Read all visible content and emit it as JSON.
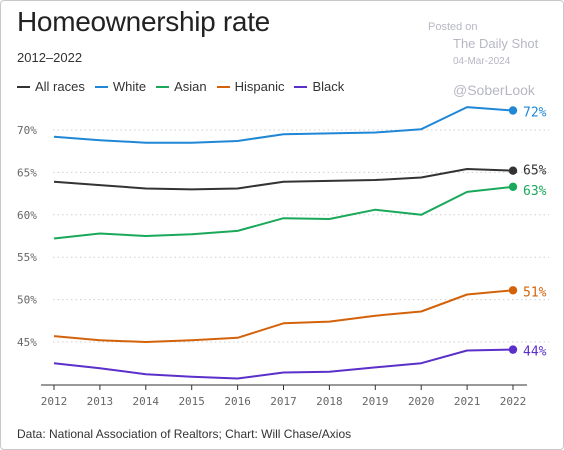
{
  "title": "Homeownership rate",
  "subtitle": "2012–2022",
  "source": "Data: National Association of Realtors; Chart: Will Chase/Axios",
  "watermark": {
    "line1": "Posted on",
    "line2": "The Daily Shot",
    "line3": "04-Mar-2024",
    "line4": "@SoberLook"
  },
  "chart_data": {
    "type": "line",
    "x": [
      2012,
      2013,
      2014,
      2015,
      2016,
      2017,
      2018,
      2019,
      2020,
      2021,
      2022
    ],
    "x_tick_labels": [
      "2012",
      "2013",
      "2014",
      "2015",
      "2016",
      "2017",
      "2018",
      "2019",
      "2020",
      "2021",
      "2022"
    ],
    "ylim": [
      40,
      74
    ],
    "y_ticks": [
      45,
      50,
      55,
      60,
      65,
      70
    ],
    "y_tick_labels": [
      "45%",
      "50%",
      "55%",
      "60%",
      "65%",
      "70%"
    ],
    "grid": "horizontal dotted",
    "legend_position": "top-left",
    "series": [
      {
        "name": "All races",
        "color": "#333333",
        "end_label": "65%",
        "values": [
          63.9,
          63.5,
          63.1,
          63.0,
          63.1,
          63.9,
          64.0,
          64.1,
          64.4,
          65.4,
          65.2
        ]
      },
      {
        "name": "White",
        "color": "#1f87d6",
        "end_label": "72%",
        "values": [
          69.2,
          68.8,
          68.5,
          68.5,
          68.7,
          69.5,
          69.6,
          69.7,
          70.1,
          72.7,
          72.3
        ]
      },
      {
        "name": "Asian",
        "color": "#1aa85a",
        "end_label": "63%",
        "values": [
          57.2,
          57.8,
          57.5,
          57.7,
          58.1,
          59.6,
          59.5,
          60.6,
          60.0,
          62.7,
          63.3
        ]
      },
      {
        "name": "Hispanic",
        "color": "#d4620a",
        "end_label": "51%",
        "values": [
          45.7,
          45.2,
          45.0,
          45.2,
          45.5,
          47.2,
          47.4,
          48.1,
          48.6,
          50.6,
          51.1
        ]
      },
      {
        "name": "Black",
        "color": "#5b2fc9",
        "end_label": "44%",
        "values": [
          42.5,
          41.9,
          41.2,
          40.9,
          40.7,
          41.4,
          41.5,
          42.0,
          42.5,
          44.0,
          44.1
        ]
      }
    ]
  }
}
